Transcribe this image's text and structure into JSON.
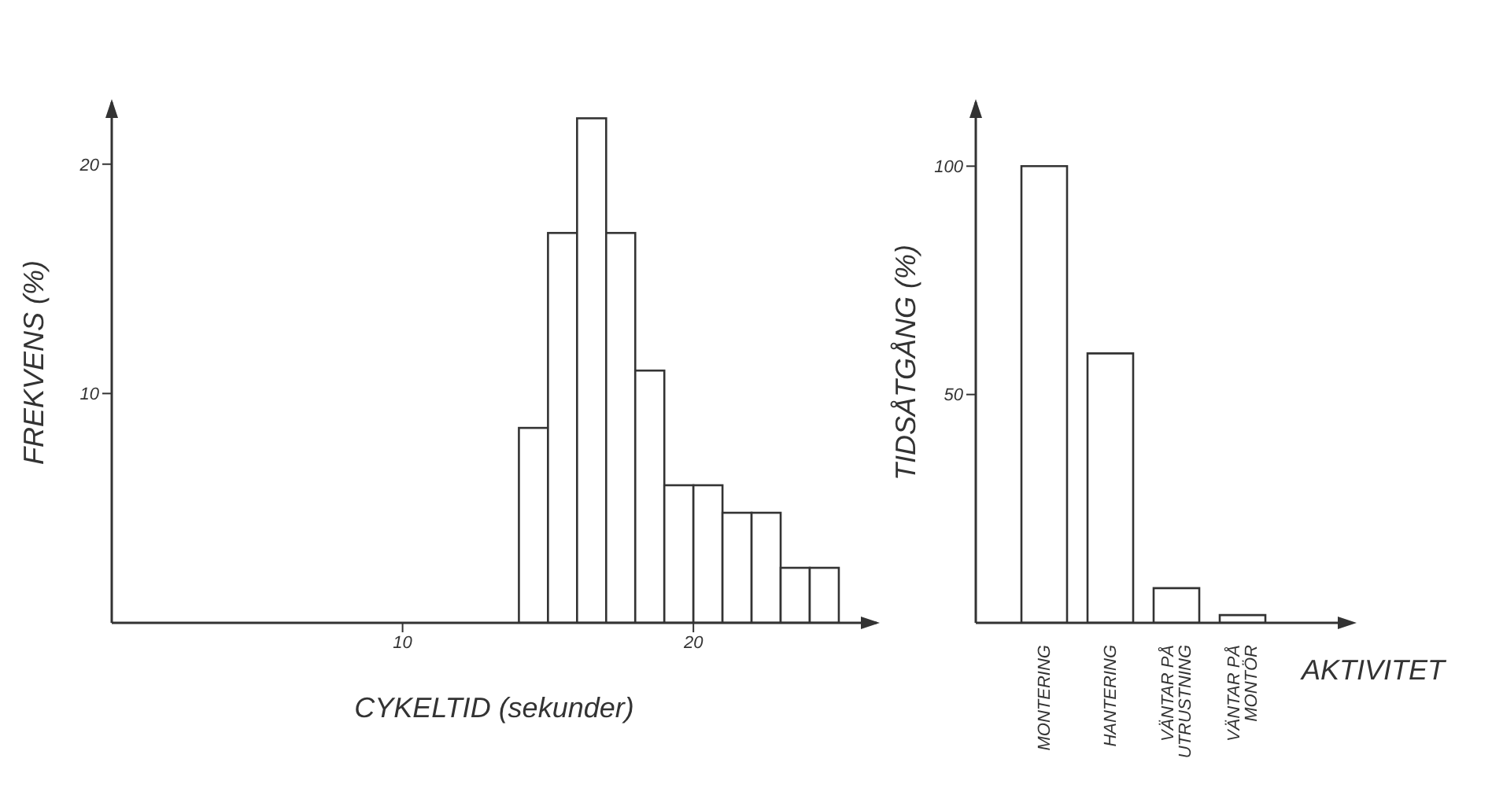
{
  "chart_data": [
    {
      "type": "histogram",
      "xlabel": "CYKELTID (sekunder)",
      "ylabel": "FREKVENS (%)",
      "bins": [
        14,
        15,
        16,
        17,
        18,
        19,
        20,
        21,
        22,
        23,
        24,
        25
      ],
      "values": [
        8.5,
        17,
        22,
        17,
        11,
        6,
        6,
        4.8,
        4.8,
        2.4,
        2.4
      ],
      "color": "#ffffff",
      "xlim": [
        0,
        26.3
      ],
      "ylim": [
        0,
        22.7
      ],
      "xticks": [
        10,
        20
      ],
      "yticks": [
        10,
        20
      ]
    },
    {
      "type": "bar",
      "xlabel": "AKTIVITET",
      "ylabel": "TIDSÅTGÅNG (%)",
      "categories": [
        "MONTERING",
        "HANTERING",
        "VÄNTAR PÅ UTRUSTNING",
        "VÄNTAR PÅ MONTÖR",
        null
      ],
      "values": [
        100,
        59,
        7.6,
        1.7,
        null
      ],
      "color": "#ffffff",
      "ylim": [
        0,
        114
      ],
      "yticks": [
        50,
        100
      ]
    }
  ]
}
